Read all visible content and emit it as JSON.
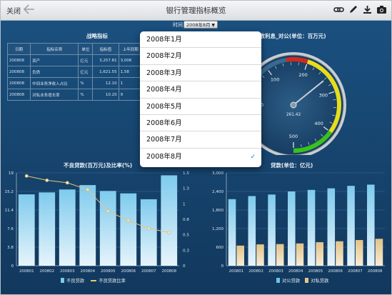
{
  "navbar": {
    "close_label": "关闭",
    "title": "银行管理指标概览",
    "icons": [
      "back-arrow-icon",
      "link-icon",
      "pencil-icon",
      "download-icon",
      "camera-icon"
    ]
  },
  "time_filter": {
    "label": "时间",
    "selected": "2008年8月"
  },
  "dropdown": {
    "options": [
      "2008年1月",
      "2008年2月",
      "2008年3月",
      "2008年4月",
      "2008年5月",
      "2008年6月",
      "2008年7月",
      "2008年8月"
    ],
    "selected_index": 7
  },
  "strategy": {
    "title": "战略指标",
    "headers": [
      "日期",
      "指标名称",
      "单位",
      "指标值",
      "上年同期"
    ],
    "rows": [
      [
        "200808",
        "资产",
        "亿元",
        "3,257.81",
        "3,006"
      ],
      [
        "200808",
        "负债",
        "亿元",
        "1,621.55",
        "1,58"
      ],
      [
        "200808",
        "中间业务净收入占比",
        "%",
        "12.10",
        "1"
      ],
      [
        "200808",
        "对私业务增长率",
        "%",
        "10.20",
        "9"
      ]
    ]
  },
  "gauge": {
    "title": "累计应收利息_对公(单位：百万元)",
    "visible_title": "累计应收利息_对公(单位：百万元)",
    "value": 261.42,
    "value_label": "261.42",
    "min": 0,
    "max": 500,
    "tick_labels": [
      "0",
      "100",
      "200",
      "300",
      "400",
      "500"
    ]
  },
  "colors": {
    "accent": "#2f78d3",
    "bar": "#7ec8ea",
    "line": "#f0c27a",
    "gauge_red": "#d12a1d",
    "gauge_yellow": "#e6dd1c",
    "gauge_green": "#39c21c"
  },
  "chart_data": [
    {
      "type": "bar",
      "title": "不良贷款(百万元)及比率(%)",
      "categories": [
        "200801",
        "200802",
        "200803",
        "200804",
        "200805",
        "200806",
        "200807",
        "200808"
      ],
      "ylim": [
        0,
        19
      ],
      "y_ticks": [
        "0",
        "3.8",
        "7.6",
        "11.4",
        "15.2",
        "19"
      ],
      "y2lim": [
        0,
        1.5
      ],
      "y2_ticks": [
        "0",
        "0.3",
        "0.5",
        "0.8",
        "1",
        "1.3",
        "1.5"
      ],
      "series": [
        {
          "name": "不良贷款",
          "kind": "bar",
          "values": [
            14.6,
            15.0,
            15.6,
            16.5,
            15.3,
            14.8,
            13.6,
            18.5
          ]
        },
        {
          "name": "不良贷款比率",
          "kind": "line",
          "axis": "right",
          "values": [
            1.45,
            1.38,
            1.34,
            1.23,
            0.88,
            0.73,
            0.6,
            0.54
          ]
        }
      ],
      "grid": true,
      "legend": "bottom"
    },
    {
      "type": "bar",
      "title": "贷款(单位：亿元)",
      "categories": [
        "200801",
        "200802",
        "200803",
        "200804",
        "200805",
        "200806",
        "200807",
        "200808"
      ],
      "ylim": [
        0,
        3000
      ],
      "y_ticks": [
        "0",
        "600",
        "1,200",
        "1,800",
        "2,400",
        "3,000"
      ],
      "series": [
        {
          "name": "对公贷款",
          "values": [
            2150,
            2250,
            2300,
            2400,
            2450,
            2500,
            2580,
            2620
          ]
        },
        {
          "name": "对私贷款",
          "values": [
            650,
            690,
            700,
            720,
            760,
            790,
            830,
            870
          ]
        }
      ],
      "grid": true,
      "legend": "bottom"
    }
  ]
}
